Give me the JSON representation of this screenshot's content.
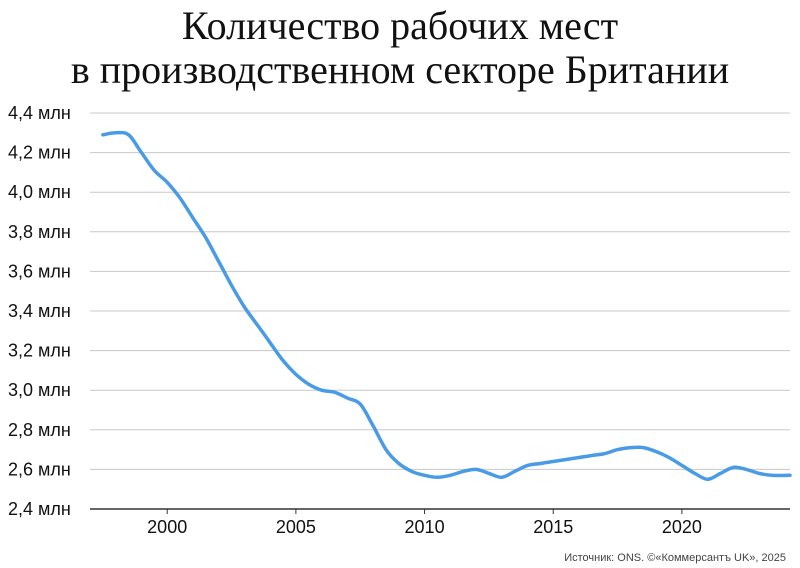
{
  "chart_data": {
    "type": "line",
    "title": [
      "Количество рабочих мест",
      "в производственном секторе Британии"
    ],
    "xlabel": "",
    "ylabel": "",
    "ylim": [
      2.4,
      4.4
    ],
    "y_ticks": [
      {
        "value": 4.4,
        "label": "4,4 млн"
      },
      {
        "value": 4.2,
        "label": "4,2 млн"
      },
      {
        "value": 4.0,
        "label": "4,0 млн"
      },
      {
        "value": 3.8,
        "label": "3,8 млн"
      },
      {
        "value": 3.6,
        "label": "3,6 млн"
      },
      {
        "value": 3.4,
        "label": "3,4 млн"
      },
      {
        "value": 3.2,
        "label": "3,2 млн"
      },
      {
        "value": 3.0,
        "label": "3,0 млн"
      },
      {
        "value": 2.8,
        "label": "2,8 млн"
      },
      {
        "value": 2.6,
        "label": "2,6 млн"
      },
      {
        "value": 2.4,
        "label": "2,4 млн"
      }
    ],
    "x_ticks": [
      {
        "value": 2000,
        "label": "2000"
      },
      {
        "value": 2005,
        "label": "2005"
      },
      {
        "value": 2010,
        "label": "2010"
      },
      {
        "value": 2015,
        "label": "2015"
      },
      {
        "value": 2020,
        "label": "2020"
      }
    ],
    "xlim": [
      1997,
      2024.2
    ],
    "grid": true,
    "legend": "none",
    "series": [
      {
        "color": "#4a9be6",
        "x": [
          1997.5,
          1998.0,
          1998.5,
          1999.0,
          1999.5,
          2000.0,
          2000.5,
          2001.0,
          2001.5,
          2002.0,
          2002.5,
          2003.0,
          2003.5,
          2004.0,
          2004.5,
          2005.0,
          2005.5,
          2006.0,
          2006.5,
          2007.0,
          2007.5,
          2008.0,
          2008.5,
          2009.0,
          2009.5,
          2010.0,
          2010.5,
          2011.0,
          2011.5,
          2012.0,
          2012.5,
          2013.0,
          2013.5,
          2014.0,
          2014.5,
          2015.0,
          2015.5,
          2016.0,
          2016.5,
          2017.0,
          2017.5,
          2018.0,
          2018.5,
          2019.0,
          2019.5,
          2020.0,
          2020.5,
          2021.0,
          2021.5,
          2022.0,
          2022.5,
          2023.0,
          2023.5,
          2024.2
        ],
        "values": [
          4.29,
          4.3,
          4.29,
          4.2,
          4.11,
          4.05,
          3.97,
          3.87,
          3.77,
          3.65,
          3.53,
          3.42,
          3.33,
          3.24,
          3.15,
          3.08,
          3.03,
          3.0,
          2.99,
          2.96,
          2.93,
          2.82,
          2.7,
          2.63,
          2.59,
          2.57,
          2.56,
          2.57,
          2.59,
          2.6,
          2.58,
          2.56,
          2.59,
          2.62,
          2.63,
          2.64,
          2.65,
          2.66,
          2.67,
          2.68,
          2.7,
          2.71,
          2.71,
          2.69,
          2.66,
          2.62,
          2.58,
          2.55,
          2.58,
          2.61,
          2.6,
          2.58,
          2.57,
          2.57
        ]
      }
    ]
  },
  "source": "Источник: ONS. ©«Коммерсантъ UK», 2025",
  "colors": {
    "line": "#4a9be6",
    "grid": "#c8c8c8",
    "axis": "#333333"
  }
}
